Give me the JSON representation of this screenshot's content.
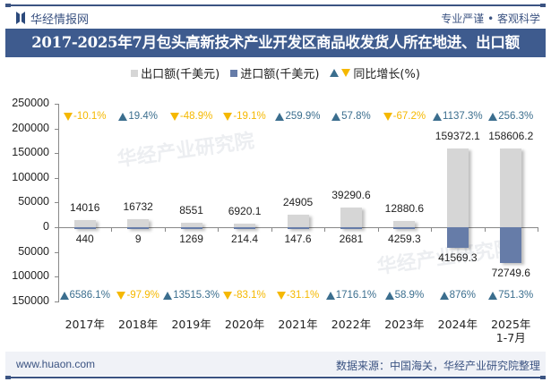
{
  "header": {
    "brand_name": "华经情报网",
    "slogan": "专业严谨 • 客观科学",
    "title": "2017-2025年7月包头高新技术产业开发区商品收发货人所在地进、出口额"
  },
  "legend": {
    "export_label": "出口额(千美元)",
    "import_label": "进口额(千美元)",
    "growth_label": "同比增长(%)"
  },
  "colors": {
    "export": "#d6d6d6",
    "import": "#667ca8",
    "growth_up": "#3b6e8e",
    "growth_down": "#f5b800",
    "title_bg": "#3e5b8e"
  },
  "chart_data": {
    "type": "bar",
    "title": "2017-2025年7月包头高新技术产业开发区商品收发货人所在地进、出口额",
    "xlabel": "",
    "ylabel": "",
    "categories": [
      "2017年",
      "2018年",
      "2019年",
      "2020年",
      "2021年",
      "2022年",
      "2023年",
      "2024年",
      "2025年 1-7月"
    ],
    "series": [
      {
        "name": "出口额(千美元)",
        "values": [
          14016,
          16732,
          8551,
          6920.1,
          24905,
          39290.6,
          12880.6,
          159372.1,
          158606.2
        ]
      },
      {
        "name": "进口额(千美元)",
        "values": [
          440,
          9,
          1269,
          214.4,
          147.6,
          2681,
          4259.3,
          41569.3,
          72749.6
        ]
      }
    ],
    "export_growth_pct": [
      -10.1,
      19.4,
      -48.9,
      -19.1,
      259.9,
      57.8,
      -67.2,
      1137.3,
      256.3
    ],
    "import_growth_pct": [
      6586.1,
      -97.9,
      13515.3,
      -83.1,
      -31.1,
      1716.1,
      58.9,
      876,
      751.3
    ],
    "y_ticks": [
      "250000",
      "200000",
      "150000",
      "100000",
      "50000",
      "0",
      "50000",
      "100000",
      "150000"
    ],
    "ylim": [
      -150000,
      250000
    ],
    "grid": false,
    "legend_position": "top"
  },
  "labels": {
    "export_values": [
      "14016",
      "16732",
      "8551",
      "6920.1",
      "24905",
      "39290.6",
      "12880.6",
      "159372.1",
      "158606.2"
    ],
    "import_values": [
      "440",
      "9",
      "1269",
      "214.4",
      "147.6",
      "2681",
      "4259.3",
      "41569.3",
      "72749.6"
    ],
    "export_growth": [
      "-10.1%",
      "19.4%",
      "-48.9%",
      "-19.1%",
      "259.9%",
      "57.8%",
      "-67.2%",
      "1137.3%",
      "256.3%"
    ],
    "import_growth": [
      "6586.1%",
      "-97.9%",
      "13515.3%",
      "-83.1%",
      "-31.1%",
      "1716.1%",
      "58.9%",
      "876%",
      "751.3%"
    ],
    "x_line1": [
      "2017年",
      "2018年",
      "2019年",
      "2020年",
      "2021年",
      "2022年",
      "2023年",
      "2024年",
      "2025年"
    ],
    "x_line2": [
      "",
      "",
      "",
      "",
      "",
      "",
      "",
      "",
      "1-7月"
    ]
  },
  "watermark": {
    "text": "华经产业研究院",
    "url": "www.huaon.com"
  },
  "footer": {
    "website": "www.huaon.com",
    "source": "数据来源：中国海关，华经产业研究院整理"
  }
}
